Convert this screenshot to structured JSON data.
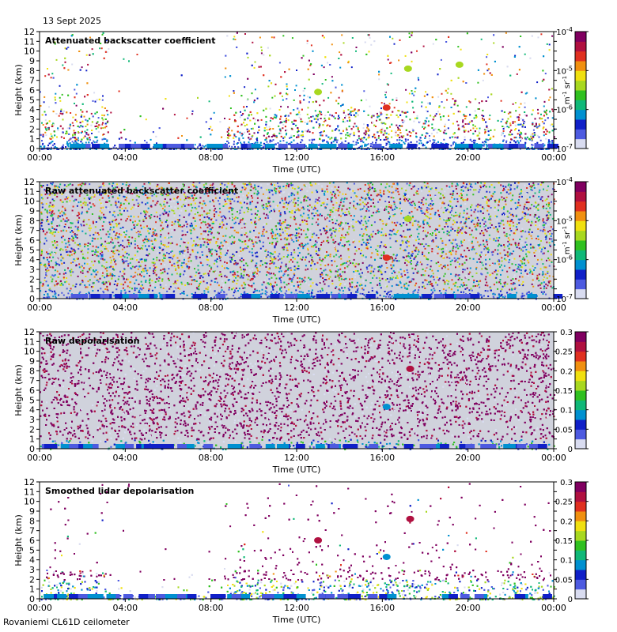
{
  "date": "13 Sept 2025",
  "station": "Rovaniemi CL61D ceilometer",
  "x_axis": {
    "label": "Time (UTC)",
    "ticks": [
      "00:00",
      "04:00",
      "08:00",
      "12:00",
      "16:00",
      "20:00",
      "00:00"
    ],
    "range_hours": [
      0,
      24
    ]
  },
  "y_axis": {
    "label": "Height (km)",
    "ticks": [
      "0",
      "1",
      "2",
      "3",
      "4",
      "5",
      "6",
      "7",
      "8",
      "9",
      "10",
      "11",
      "12"
    ],
    "range_km": [
      0,
      12
    ]
  },
  "colormap": [
    "#d9dcf0",
    "#4d5ae0",
    "#1020c8",
    "#0090d0",
    "#10b878",
    "#30c020",
    "#a8d820",
    "#f0e010",
    "#f09010",
    "#e03020",
    "#b01040",
    "#800060"
  ],
  "colors": {
    "white": "#ffffff",
    "black": "#000000",
    "grey": "#d0d2dc"
  },
  "chart_data": [
    {
      "type": "heatmap",
      "title": "Attenuated backscatter coefficient",
      "xlabel": "Time (UTC)",
      "ylabel": "Height (km)",
      "colorbar": {
        "scale": "log",
        "ticks": [
          "10",
          "10",
          "10",
          "10"
        ],
        "exponents": [
          "-7",
          "-6",
          "-5",
          "-4"
        ],
        "unit": "m",
        "unit_sup": "-1",
        "unit2": " sr",
        "unit2_sup": "-1"
      },
      "gaps_hours": [
        [
          3.2,
          8.6
        ],
        [
          21.2,
          21.5
        ]
      ],
      "features": [
        {
          "desc": "cloud",
          "time_h": 16.2,
          "height_km": 4.2,
          "value_index": 9
        },
        {
          "desc": "cloud",
          "time_h": 17.2,
          "height_km": 8.2,
          "value_index": 6
        },
        {
          "desc": "cloud",
          "time_h": 19.6,
          "height_km": 8.6,
          "value_index": 6
        },
        {
          "desc": "cloud",
          "time_h": 13.0,
          "height_km": 5.8,
          "value_index": 6
        }
      ]
    },
    {
      "type": "heatmap",
      "title": "Raw attenuated backscatter coefficient",
      "xlabel": "Time (UTC)",
      "ylabel": "Height (km)",
      "colorbar": {
        "scale": "log",
        "ticks": [
          "10",
          "10",
          "10",
          "10"
        ],
        "exponents": [
          "-7",
          "-6",
          "-5",
          "-4"
        ],
        "unit": "m",
        "unit_sup": "-1",
        "unit2": " sr",
        "unit2_sup": "-1"
      },
      "features": [
        {
          "desc": "cloud",
          "time_h": 16.2,
          "height_km": 4.2,
          "value_index": 9
        },
        {
          "desc": "cloud",
          "time_h": 17.2,
          "height_km": 8.2,
          "value_index": 6
        }
      ]
    },
    {
      "type": "heatmap",
      "title": "Raw depolarisation",
      "xlabel": "Time (UTC)",
      "ylabel": "Height (km)",
      "colorbar": {
        "scale": "linear",
        "range": [
          0,
          0.3
        ],
        "ticks": [
          "0",
          "0.05",
          "0.1",
          "0.15",
          "0.2",
          "0.25",
          "0.3"
        ]
      },
      "features": [
        {
          "desc": "depol",
          "time_h": 17.3,
          "height_km": 8.2,
          "value_index": 10
        },
        {
          "desc": "depol",
          "time_h": 16.2,
          "height_km": 4.3,
          "value_index": 3
        }
      ]
    },
    {
      "type": "heatmap",
      "title": "Smoothed lidar depolarisation",
      "xlabel": "Time (UTC)",
      "ylabel": "Height (km)",
      "colorbar": {
        "scale": "linear",
        "range": [
          0,
          0.3
        ],
        "ticks": [
          "0",
          "0.05",
          "0.1",
          "0.15",
          "0.2",
          "0.25",
          "0.3"
        ]
      },
      "gaps_hours": [
        [
          3.3,
          8.6
        ],
        [
          21.2,
          21.5
        ]
      ],
      "features": [
        {
          "desc": "depol",
          "time_h": 17.3,
          "height_km": 8.2,
          "value_index": 10
        },
        {
          "desc": "depol",
          "time_h": 16.2,
          "height_km": 4.3,
          "value_index": 3
        },
        {
          "desc": "depol",
          "time_h": 13.0,
          "height_km": 6.0,
          "value_index": 10
        }
      ]
    }
  ]
}
